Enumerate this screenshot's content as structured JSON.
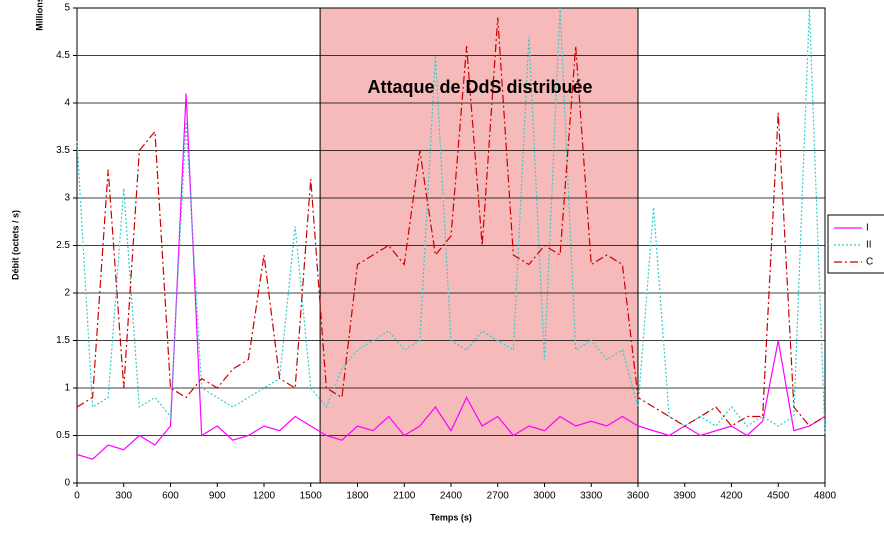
{
  "chart_data": {
    "type": "line",
    "y_unit_label": "Millions",
    "y_label": "Débit (octets / s)",
    "x_label": "Temps (s)",
    "annotation": "Attaque de DdS distribuée",
    "shaded_region": [
      1560,
      3600
    ],
    "shaded_color": "#f6baba",
    "xlim": [
      0,
      4800
    ],
    "xticks": [
      0,
      300,
      600,
      900,
      1200,
      1500,
      1800,
      2100,
      2400,
      2700,
      3000,
      3300,
      3600,
      3900,
      4200,
      4500,
      4800
    ],
    "ylim": [
      0,
      5
    ],
    "yticks": [
      0,
      0.5,
      1,
      1.5,
      2,
      2.5,
      3,
      3.5,
      4,
      4.5,
      5
    ],
    "grid": true,
    "legend": "right",
    "x": [
      0,
      100,
      200,
      300,
      400,
      500,
      600,
      700,
      800,
      900,
      1000,
      1100,
      1200,
      1300,
      1400,
      1500,
      1600,
      1700,
      1800,
      1900,
      2000,
      2100,
      2200,
      2300,
      2400,
      2500,
      2600,
      2700,
      2800,
      2900,
      3000,
      3100,
      3200,
      3300,
      3400,
      3500,
      3600,
      3700,
      3800,
      3900,
      4000,
      4100,
      4200,
      4300,
      4400,
      4500,
      4600,
      4700,
      4800
    ],
    "series": [
      {
        "name": "I",
        "color": "#ff00ff",
        "dash": "solid",
        "values": [
          0.3,
          0.25,
          0.4,
          0.35,
          0.5,
          0.4,
          0.6,
          4.1,
          0.5,
          0.6,
          0.45,
          0.5,
          0.6,
          0.55,
          0.7,
          0.6,
          0.5,
          0.45,
          0.6,
          0.55,
          0.7,
          0.5,
          0.6,
          0.8,
          0.55,
          0.9,
          0.6,
          0.7,
          0.5,
          0.6,
          0.55,
          0.7,
          0.6,
          0.65,
          0.6,
          0.7,
          0.6,
          0.55,
          0.5,
          0.6,
          0.5,
          0.55,
          0.6,
          0.5,
          0.65,
          1.5,
          0.55,
          0.6,
          0.7
        ]
      },
      {
        "name": "II",
        "color": "#33cccc",
        "dash": "dotted",
        "values": [
          3.6,
          0.8,
          0.9,
          3.1,
          0.8,
          0.9,
          0.7,
          3.8,
          1.0,
          0.9,
          0.8,
          0.9,
          1.0,
          1.1,
          2.7,
          1.0,
          0.8,
          1.2,
          1.4,
          1.5,
          1.6,
          1.4,
          1.5,
          4.5,
          1.5,
          1.4,
          1.6,
          1.5,
          1.4,
          4.7,
          1.3,
          5.0,
          1.4,
          1.5,
          1.3,
          1.4,
          0.8,
          2.9,
          0.7,
          0.6,
          0.7,
          0.6,
          0.8,
          0.6,
          0.7,
          0.6,
          0.7,
          5.0,
          0.5
        ]
      },
      {
        "name": "C",
        "color": "#cc0000",
        "dash": "dashdot",
        "values": [
          0.8,
          0.9,
          3.3,
          1.0,
          3.5,
          3.7,
          1.0,
          0.9,
          1.1,
          1.0,
          1.2,
          1.3,
          2.4,
          1.1,
          1.0,
          3.2,
          1.0,
          0.9,
          2.3,
          2.4,
          2.5,
          2.3,
          3.5,
          2.4,
          2.6,
          4.6,
          2.5,
          4.9,
          2.4,
          2.3,
          2.5,
          2.4,
          4.6,
          2.3,
          2.4,
          2.3,
          0.9,
          0.8,
          0.7,
          0.6,
          0.7,
          0.8,
          0.6,
          0.7,
          0.7,
          3.9,
          0.8,
          0.6,
          0.7
        ]
      }
    ]
  }
}
